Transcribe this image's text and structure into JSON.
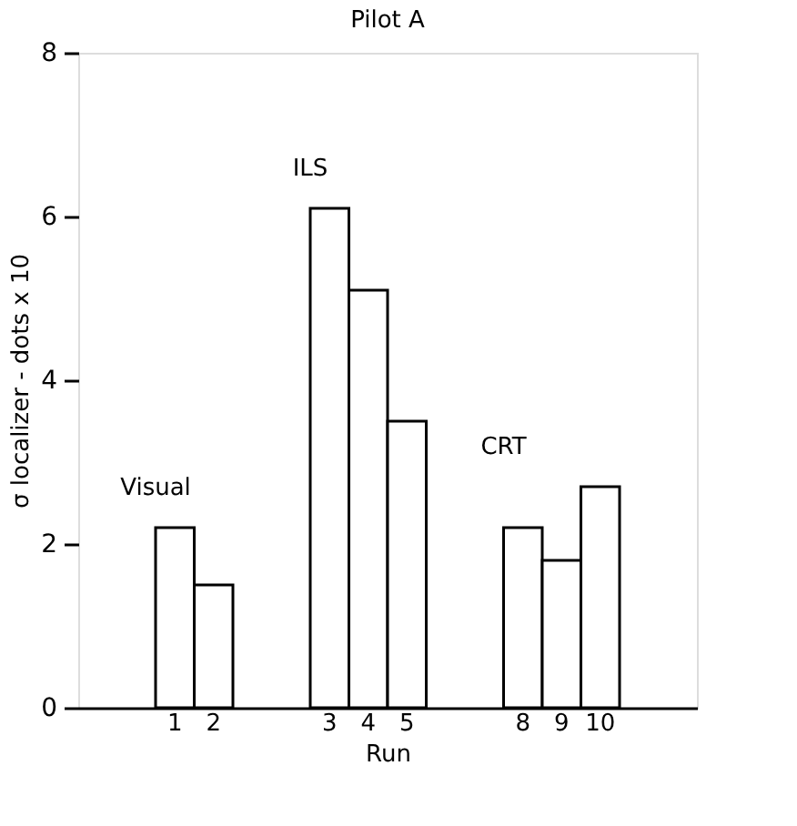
{
  "chart_data": {
    "type": "bar",
    "title": "Pilot A",
    "xlabel": "Run",
    "ylabel": "σ localizer - dots x 10",
    "categories": [
      null,
      null,
      "1",
      "2",
      null,
      null,
      "3",
      "4",
      "5",
      null,
      null,
      "8",
      "9",
      "10",
      null,
      null
    ],
    "values": [
      null,
      null,
      2.2,
      1.5,
      null,
      null,
      6.1,
      5.1,
      3.5,
      null,
      null,
      2.2,
      1.8,
      2.7,
      null,
      null
    ],
    "color": "#ffffff",
    "ylim": [
      0,
      8
    ],
    "yticks": [
      0,
      2,
      4,
      6,
      8
    ],
    "grid": false,
    "annotations": [
      "Visual",
      "ILS",
      "CRT"
    ]
  }
}
